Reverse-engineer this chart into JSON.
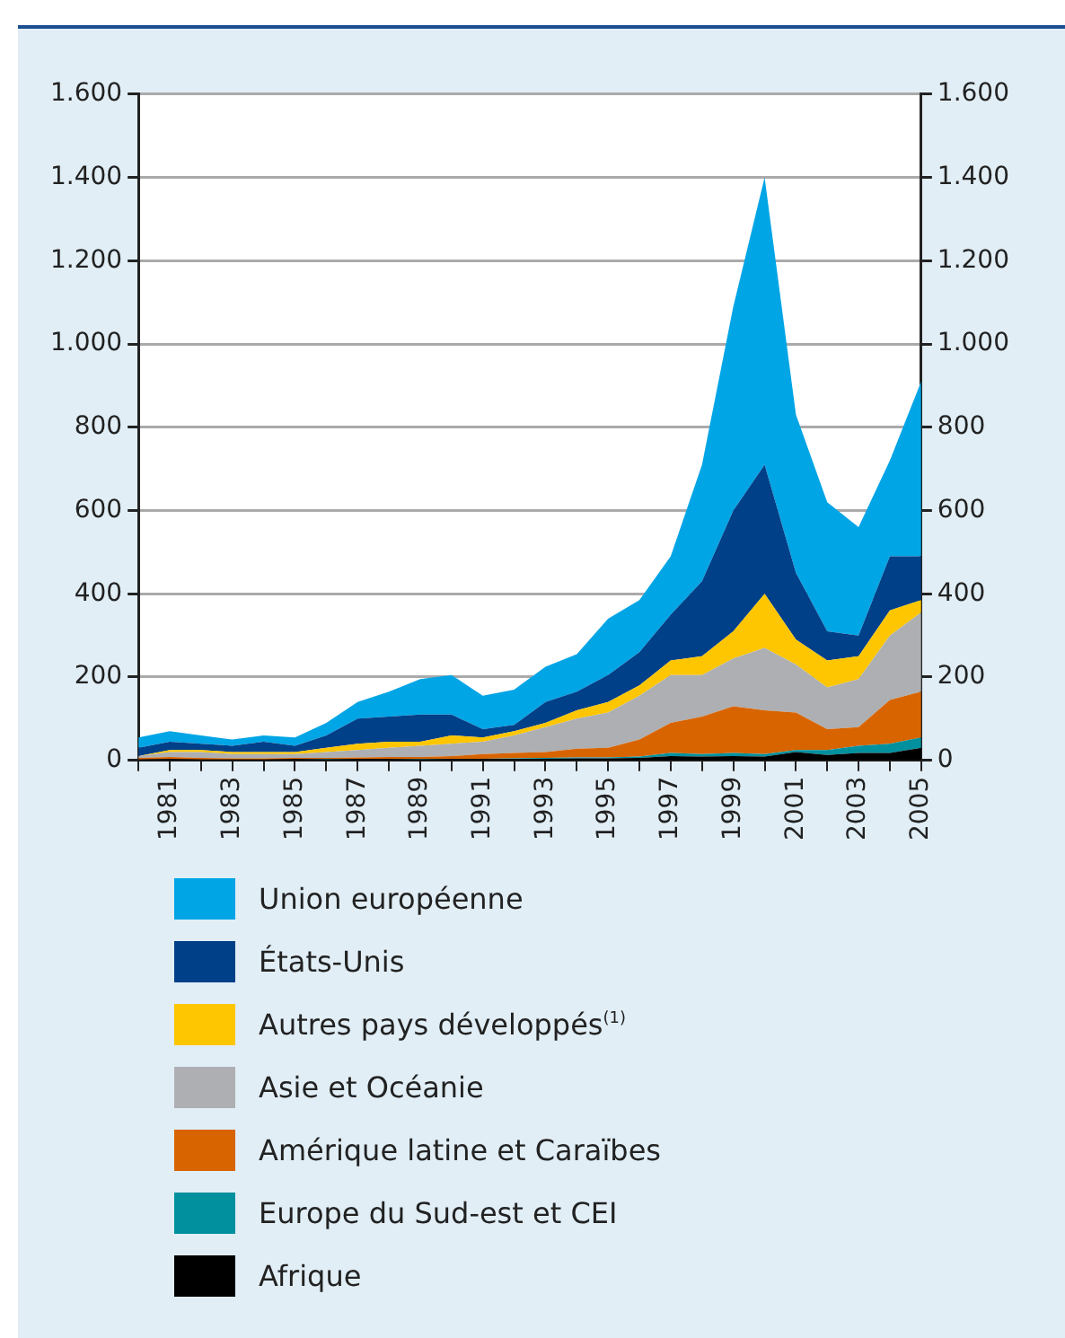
{
  "chart_data": {
    "type": "area",
    "stacked": true,
    "categories": [
      null,
      "1981",
      null,
      "1983",
      null,
      "1985",
      null,
      "1987",
      null,
      "1989",
      null,
      "1991",
      null,
      "1993",
      null,
      "1995",
      null,
      "1997",
      null,
      "1999",
      null,
      "2001",
      null,
      "2003",
      null,
      "2005"
    ],
    "series": [
      {
        "name": "Afrique",
        "color": "#000000",
        "values": [
          2,
          3,
          2,
          2,
          2,
          3,
          2,
          3,
          3,
          2,
          3,
          3,
          3,
          4,
          5,
          5,
          6,
          10,
          9,
          10,
          9,
          20,
          13,
          18,
          18,
          30
        ]
      },
      {
        "name": "Europe du Sud-est et CEI",
        "color": "#00909e",
        "values": [
          0,
          0,
          0,
          0,
          0,
          0,
          1,
          0,
          0,
          1,
          1,
          1,
          2,
          2,
          2,
          2,
          3,
          8,
          6,
          8,
          6,
          5,
          12,
          17,
          22,
          25
        ]
      },
      {
        "name": "Amérique latine et Caraïbes",
        "color": "#d86400",
        "values": [
          4,
          5,
          4,
          3,
          3,
          3,
          3,
          4,
          5,
          5,
          6,
          11,
          13,
          14,
          21,
          23,
          41,
          72,
          90,
          112,
          105,
          90,
          50,
          45,
          105,
          110
        ]
      },
      {
        "name": "Asie et Océanie",
        "color": "#adafb2",
        "values": [
          4,
          12,
          14,
          10,
          10,
          9,
          14,
          18,
          22,
          27,
          30,
          30,
          42,
          60,
          72,
          85,
          105,
          115,
          100,
          115,
          150,
          115,
          100,
          115,
          155,
          190
        ]
      },
      {
        "name": "Autres pays développés$^{(1)}$",
        "color": "#fdc600",
        "values": [
          0,
          5,
          5,
          5,
          5,
          5,
          10,
          15,
          15,
          10,
          20,
          10,
          10,
          10,
          20,
          25,
          25,
          35,
          45,
          65,
          130,
          60,
          65,
          55,
          60,
          30
        ]
      },
      {
        "name": "États-Unis",
        "color": "#004088",
        "values": [
          20,
          20,
          15,
          15,
          25,
          15,
          30,
          60,
          60,
          65,
          50,
          20,
          15,
          50,
          45,
          65,
          80,
          110,
          180,
          290,
          310,
          160,
          70,
          50,
          130,
          105
        ]
      },
      {
        "name": "Union européenne",
        "color": "#00a5e6",
        "values": [
          25,
          25,
          20,
          15,
          15,
          20,
          30,
          40,
          60,
          85,
          95,
          80,
          85,
          85,
          90,
          135,
          125,
          140,
          280,
          490,
          690,
          380,
          310,
          260,
          230,
          420
        ]
      }
    ],
    "ylim": [
      0,
      1600
    ],
    "yticks": [
      0,
      200,
      400,
      600,
      800,
      {
        "value": 1000,
        "label": "1.000"
      },
      {
        "value": 1200,
        "label": "1.200"
      },
      {
        "value": 1400,
        "label": "1.400"
      },
      {
        "value": 1600,
        "label": "1.600"
      }
    ],
    "y2lim": [
      0,
      1600
    ],
    "y2ticks": [
      0,
      200,
      400,
      600,
      800,
      {
        "value": 1000,
        "label": "1.000"
      },
      {
        "value": 1200,
        "label": "1.200"
      },
      {
        "value": 1400,
        "label": "1.400"
      },
      {
        "value": 1600,
        "label": "1.600"
      }
    ],
    "grid": "y",
    "legend": "bottom"
  }
}
